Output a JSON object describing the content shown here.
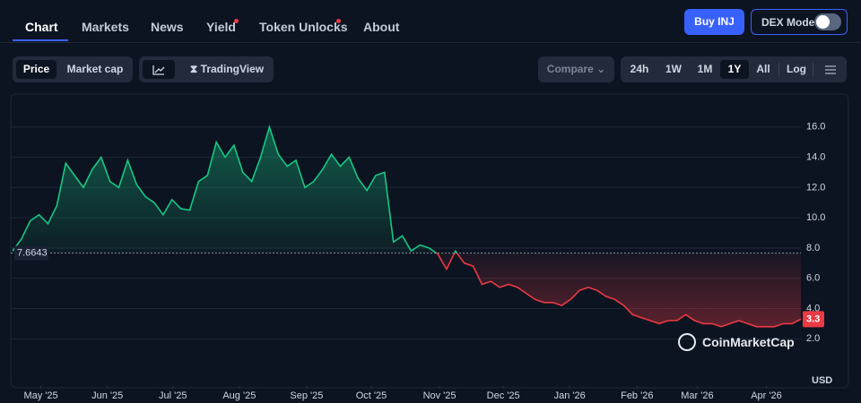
{
  "ui": {
    "tabs": [
      "Chart",
      "Markets",
      "News",
      "Yield",
      "Token Unlocks",
      "About"
    ],
    "buy_button": "Buy INJ",
    "dex_mode": "DEX Mode",
    "view_buttons": [
      "Price",
      "Market cap"
    ],
    "tradingview": "TradingView",
    "compare": "Compare",
    "ranges": [
      "24h",
      "1W",
      "1M",
      "1Y",
      "All"
    ],
    "log": "Log",
    "watermark": "CoinMarketCap"
  },
  "chart_data": {
    "type": "line",
    "values": [
      7.8,
      8.6,
      9.8,
      10.2,
      9.6,
      10.8,
      13.6,
      12.8,
      12.0,
      13.2,
      14.0,
      12.4,
      12.0,
      13.8,
      12.2,
      11.4,
      11.0,
      10.2,
      11.2,
      10.6,
      10.5,
      12.4,
      12.8,
      15.0,
      14.0,
      14.8,
      13.0,
      12.4,
      14.0,
      16.0,
      14.2,
      13.4,
      13.8,
      12.0,
      12.4,
      13.2,
      14.2,
      13.4,
      14.0,
      12.6,
      11.8,
      12.8,
      13.0,
      8.4,
      8.8,
      7.8,
      8.2,
      8.0,
      7.6,
      6.6,
      7.8,
      7.0,
      6.8,
      5.6,
      5.8,
      5.4,
      5.6,
      5.4,
      5.0,
      4.6,
      4.4,
      4.4,
      4.2,
      4.6,
      5.2,
      5.4,
      5.2,
      4.8,
      4.6,
      4.2,
      3.6,
      3.4,
      3.2,
      3.0,
      3.2,
      3.2,
      3.6,
      3.2,
      3.0,
      3.0,
      2.8,
      3.0,
      3.2,
      3.0,
      2.8,
      2.8,
      2.8,
      3.0,
      3.0,
      3.3
    ],
    "xlim": [
      0,
      89
    ],
    "ylim": [
      -1,
      18
    ],
    "yticks": [
      {
        "value": 2,
        "label": "2.0"
      },
      {
        "value": 4,
        "label": "4.0"
      },
      {
        "value": 6,
        "label": "6.0"
      },
      {
        "value": 8,
        "label": "8.0"
      },
      {
        "value": 10,
        "label": "10.0"
      },
      {
        "value": 12,
        "label": "12.0"
      },
      {
        "value": 14,
        "label": "14.0"
      },
      {
        "value": 16,
        "label": "16.0"
      }
    ],
    "xticks": [
      {
        "value": 3.2,
        "label": "May '25"
      },
      {
        "value": 10.7,
        "label": "Jun '25"
      },
      {
        "value": 18.1,
        "label": "Jul '25"
      },
      {
        "value": 25.6,
        "label": "Aug '25"
      },
      {
        "value": 33.2,
        "label": "Sep '25"
      },
      {
        "value": 40.5,
        "label": "Oct '25"
      },
      {
        "value": 48.2,
        "label": "Nov '25"
      },
      {
        "value": 55.4,
        "label": "Dec '25"
      },
      {
        "value": 62.9,
        "label": "Jan '26"
      },
      {
        "value": 70.5,
        "label": "Feb '26"
      },
      {
        "value": 77.3,
        "label": "Mar '26"
      },
      {
        "value": 85.1,
        "label": "Apr '26"
      }
    ],
    "baseline": 7.6643,
    "up_color": "#16c784",
    "down_color": "#ea3943",
    "grid": true,
    "y_label": "USD"
  }
}
